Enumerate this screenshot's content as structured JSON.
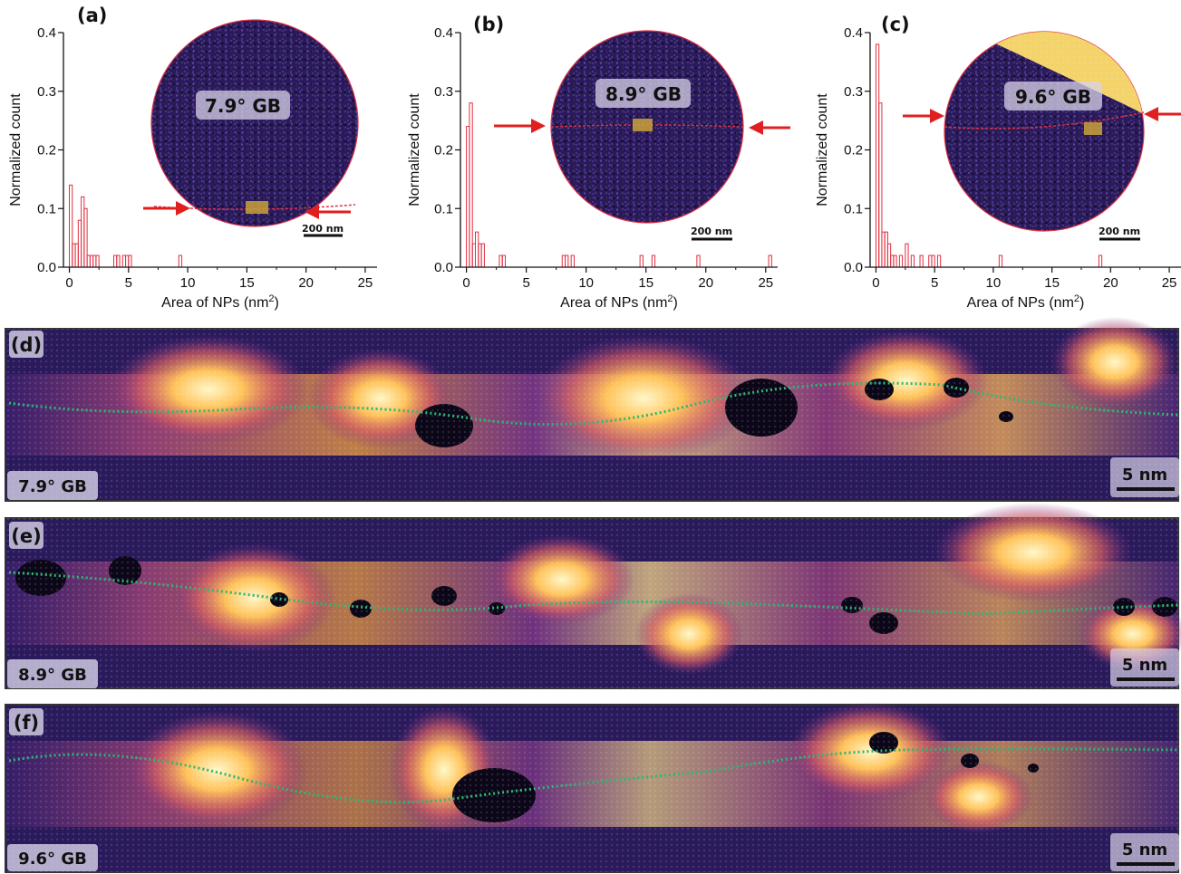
{
  "chart_data": [
    {
      "type": "bar",
      "panel": "(a)",
      "inset_label": "7.9° GB",
      "scale_bar": "200 nm",
      "xlabel": "Area of NPs (nm",
      "xlabel_sup": "2",
      "xlabel_end": ")",
      "ylabel": "Normalized count",
      "xlim": [
        -0.5,
        26
      ],
      "ylim": [
        0,
        0.4
      ],
      "xticks": [
        "0",
        "5",
        "10",
        "15",
        "20",
        "25"
      ],
      "yticks": [
        "0.0",
        "0.1",
        "0.2",
        "0.3",
        "0.4"
      ],
      "bin_width": 0.25,
      "x": [
        0.125,
        0.375,
        0.625,
        0.875,
        1.125,
        1.375,
        1.625,
        1.875,
        2.125,
        2.375,
        3.875,
        4.125,
        4.625,
        4.875,
        5.125,
        9.375
      ],
      "values": [
        0.14,
        0.04,
        0.04,
        0.08,
        0.12,
        0.1,
        0.02,
        0.02,
        0.02,
        0.02,
        0.02,
        0.02,
        0.02,
        0.02,
        0.02,
        0.02
      ]
    },
    {
      "type": "bar",
      "panel": "(b)",
      "inset_label": "8.9° GB",
      "scale_bar": "200 nm",
      "xlabel": "Area of NPs (nm",
      "xlabel_sup": "2",
      "xlabel_end": ")",
      "ylabel": "Normalized count",
      "xlim": [
        -0.5,
        26
      ],
      "ylim": [
        0,
        0.4
      ],
      "xticks": [
        "0",
        "5",
        "10",
        "15",
        "20",
        "25"
      ],
      "yticks": [
        "0.0",
        "0.1",
        "0.2",
        "0.3",
        "0.4"
      ],
      "bin_width": 0.25,
      "x": [
        0.125,
        0.375,
        0.625,
        0.875,
        1.125,
        1.375,
        2.875,
        3.125,
        8.125,
        8.375,
        8.875,
        14.625,
        15.625,
        19.375,
        25.375
      ],
      "values": [
        0.24,
        0.28,
        0.04,
        0.06,
        0.04,
        0.04,
        0.02,
        0.02,
        0.02,
        0.02,
        0.02,
        0.02,
        0.02,
        0.02,
        0.02
      ]
    },
    {
      "type": "bar",
      "panel": "(c)",
      "inset_label": "9.6° GB",
      "scale_bar": "200 nm",
      "xlabel": "Area of NPs (nm",
      "xlabel_sup": "2",
      "xlabel_end": ")",
      "ylabel": "Normalized count",
      "xlim": [
        -0.5,
        26
      ],
      "ylim": [
        0,
        0.4
      ],
      "xticks": [
        "0",
        "5",
        "10",
        "15",
        "20",
        "25"
      ],
      "yticks": [
        "0.0",
        "0.1",
        "0.2",
        "0.3",
        "0.4"
      ],
      "bin_width": 0.25,
      "x": [
        0.125,
        0.375,
        0.625,
        0.875,
        1.125,
        1.375,
        1.625,
        2.125,
        2.625,
        3.125,
        3.875,
        4.625,
        4.875,
        5.375,
        10.625,
        19.125
      ],
      "values": [
        0.38,
        0.28,
        0.06,
        0.06,
        0.04,
        0.02,
        0.02,
        0.02,
        0.04,
        0.02,
        0.02,
        0.02,
        0.02,
        0.02,
        0.02,
        0.02
      ]
    }
  ],
  "strips": [
    {
      "panel": "(d)",
      "label": "7.9° GB",
      "scale_bar": "5 nm"
    },
    {
      "panel": "(e)",
      "label": "8.9° GB",
      "scale_bar": "5 nm"
    },
    {
      "panel": "(f)",
      "label": "9.6° GB",
      "scale_bar": "5 nm"
    }
  ],
  "colors": {
    "bar_edge": "#e03040",
    "arrow": "#e02020",
    "gb_path_strip": "#2db873",
    "stem_background": "#2a1a5c",
    "stem_bright": "#ffd27a",
    "highlight_box": "#c9a23a"
  }
}
